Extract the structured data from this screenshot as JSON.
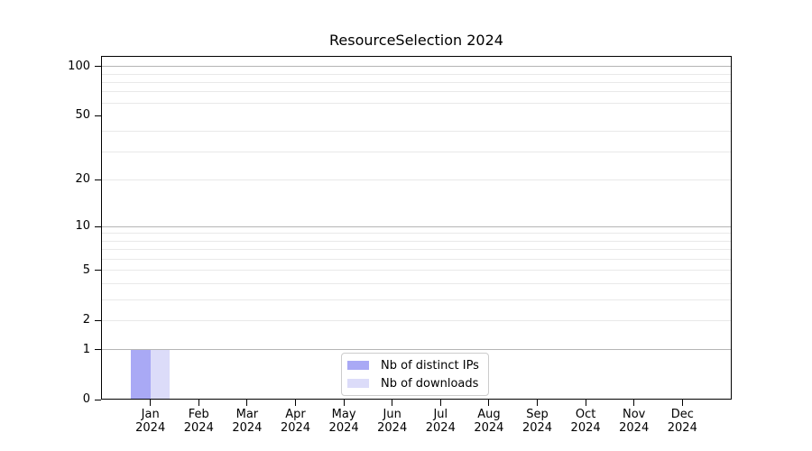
{
  "chart_data": {
    "type": "bar",
    "title": "ResourceSelection 2024",
    "categories": [
      "Jan 2024",
      "Feb 2024",
      "Mar 2024",
      "Apr 2024",
      "May 2024",
      "Jun 2024",
      "Jul 2024",
      "Aug 2024",
      "Sep 2024",
      "Oct 2024",
      "Nov 2024",
      "Dec 2024"
    ],
    "series": [
      {
        "name": "Nb of distinct IPs",
        "color": "#a9a9f5",
        "values": [
          1,
          0,
          0,
          0,
          0,
          0,
          0,
          0,
          0,
          0,
          0,
          0
        ]
      },
      {
        "name": "Nb of downloads",
        "color": "#dcdcf9",
        "values": [
          1,
          0,
          0,
          0,
          0,
          0,
          0,
          0,
          0,
          0,
          0,
          0
        ]
      }
    ],
    "xlabel": "",
    "ylabel": "",
    "yscale": "log1p",
    "ylim": [
      0,
      116
    ],
    "yticks": [
      0,
      1,
      2,
      5,
      10,
      20,
      50,
      100
    ],
    "grid": "horizontal",
    "grid_major_values": [
      1,
      10,
      100
    ],
    "grid_minor_values": [
      2,
      3,
      4,
      5,
      6,
      7,
      8,
      9,
      20,
      30,
      40,
      60,
      70,
      80,
      90
    ],
    "legend_position": "lower center",
    "colors": {
      "grid_major": "#b5b5b5",
      "grid_minor": "#e9e9e9",
      "spine": "#000000",
      "background": "#ffffff"
    }
  }
}
